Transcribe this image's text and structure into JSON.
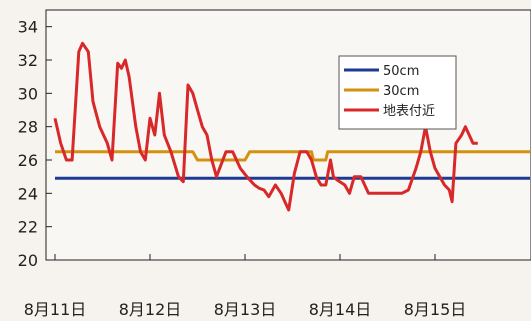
{
  "chart_data": {
    "type": "line",
    "title": "",
    "xlabel": "",
    "ylabel": "",
    "ylim": [
      20,
      35
    ],
    "xlim": [
      0,
      5
    ],
    "y_ticks": [
      20,
      22,
      24,
      26,
      28,
      30,
      32,
      34
    ],
    "x_ticks": [
      {
        "label": "8月11日",
        "x": 0
      },
      {
        "label": "8月12日",
        "x": 1
      },
      {
        "label": "8月13日",
        "x": 2
      },
      {
        "label": "8月14日",
        "x": 3
      },
      {
        "label": "8月15日",
        "x": 4
      }
    ],
    "grid": false,
    "legend_position": "top-right",
    "series": [
      {
        "name": "50cm",
        "color": "#1f3a93",
        "points": [
          [
            0,
            24.9
          ],
          [
            5,
            24.9
          ]
        ]
      },
      {
        "name": "30cm",
        "color": "#d4900f",
        "points": [
          [
            0,
            26.5
          ],
          [
            1.45,
            26.5
          ],
          [
            1.5,
            26.0
          ],
          [
            2.0,
            26.0
          ],
          [
            2.05,
            26.5
          ],
          [
            2.7,
            26.5
          ],
          [
            2.72,
            26.0
          ],
          [
            2.85,
            26.0
          ],
          [
            2.87,
            26.5
          ],
          [
            5,
            26.5
          ]
        ]
      },
      {
        "name": "地表付近",
        "color": "#d8282a",
        "points": [
          [
            0.0,
            28.5
          ],
          [
            0.06,
            27.0
          ],
          [
            0.12,
            26.0
          ],
          [
            0.18,
            26.0
          ],
          [
            0.25,
            32.5
          ],
          [
            0.29,
            33.0
          ],
          [
            0.35,
            32.5
          ],
          [
            0.4,
            29.5
          ],
          [
            0.47,
            28.0
          ],
          [
            0.55,
            27.0
          ],
          [
            0.6,
            26.0
          ],
          [
            0.66,
            31.8
          ],
          [
            0.7,
            31.5
          ],
          [
            0.74,
            32.0
          ],
          [
            0.78,
            31.0
          ],
          [
            0.85,
            28.0
          ],
          [
            0.9,
            26.5
          ],
          [
            0.95,
            26.0
          ],
          [
            1.0,
            28.5
          ],
          [
            1.05,
            27.5
          ],
          [
            1.1,
            30.0
          ],
          [
            1.15,
            27.5
          ],
          [
            1.22,
            26.5
          ],
          [
            1.3,
            25.0
          ],
          [
            1.35,
            24.7
          ],
          [
            1.4,
            30.5
          ],
          [
            1.45,
            30.0
          ],
          [
            1.5,
            29.0
          ],
          [
            1.55,
            28.0
          ],
          [
            1.6,
            27.5
          ],
          [
            1.65,
            26.0
          ],
          [
            1.7,
            25.0
          ],
          [
            1.8,
            26.5
          ],
          [
            1.87,
            26.5
          ],
          [
            1.95,
            25.5
          ],
          [
            2.02,
            25.0
          ],
          [
            2.1,
            24.5
          ],
          [
            2.15,
            24.3
          ],
          [
            2.2,
            24.2
          ],
          [
            2.25,
            23.8
          ],
          [
            2.32,
            24.5
          ],
          [
            2.38,
            24.0
          ],
          [
            2.42,
            23.5
          ],
          [
            2.46,
            23.0
          ],
          [
            2.52,
            25.2
          ],
          [
            2.58,
            26.5
          ],
          [
            2.65,
            26.5
          ],
          [
            2.7,
            26.0
          ],
          [
            2.75,
            25.0
          ],
          [
            2.8,
            24.5
          ],
          [
            2.85,
            24.5
          ],
          [
            2.9,
            26.0
          ],
          [
            2.93,
            25.0
          ],
          [
            2.97,
            24.8
          ],
          [
            3.05,
            24.5
          ],
          [
            3.1,
            24.0
          ],
          [
            3.15,
            25.0
          ],
          [
            3.22,
            25.0
          ],
          [
            3.3,
            24.0
          ],
          [
            3.35,
            24.0
          ],
          [
            3.45,
            24.0
          ],
          [
            3.55,
            24.0
          ],
          [
            3.65,
            24.0
          ],
          [
            3.72,
            24.2
          ],
          [
            3.8,
            25.5
          ],
          [
            3.85,
            26.5
          ],
          [
            3.9,
            28.0
          ],
          [
            3.95,
            26.5
          ],
          [
            4.0,
            25.5
          ],
          [
            4.05,
            25.0
          ],
          [
            4.1,
            24.5
          ],
          [
            4.15,
            24.2
          ],
          [
            4.18,
            23.5
          ],
          [
            4.22,
            27.0
          ],
          [
            4.28,
            27.5
          ],
          [
            4.32,
            28.0
          ],
          [
            4.36,
            27.5
          ],
          [
            4.4,
            27.0
          ],
          [
            4.45,
            27.0
          ]
        ]
      }
    ]
  }
}
